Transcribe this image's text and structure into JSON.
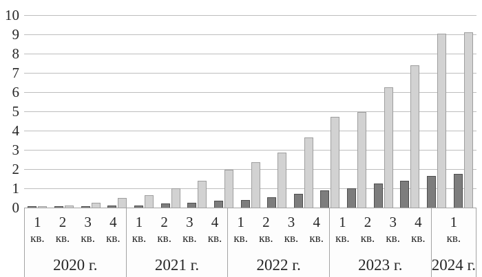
{
  "chart_data": {
    "type": "bar",
    "title": "",
    "legend": "none",
    "grid": true,
    "y_axis": {
      "min": 0,
      "max": 10,
      "tick_labels": [
        "0",
        "1",
        "2",
        "3",
        "4",
        "5",
        "6",
        "7",
        "8",
        "9",
        "10"
      ]
    },
    "x_axis": {
      "quarter_unit": "кв.",
      "years": [
        {
          "label": "2020 г.",
          "quarters": [
            "1",
            "2",
            "3",
            "4"
          ]
        },
        {
          "label": "2021 г.",
          "quarters": [
            "1",
            "2",
            "3",
            "4"
          ]
        },
        {
          "label": "2022 г.",
          "quarters": [
            "1",
            "2",
            "3",
            "4"
          ]
        },
        {
          "label": "2023 г.",
          "quarters": [
            "1",
            "2",
            "3",
            "4"
          ]
        },
        {
          "label": "2024 г.",
          "quarters": [
            "1"
          ]
        }
      ]
    },
    "categories": [
      "1 кв. 2020 г.",
      "2 кв. 2020 г.",
      "3 кв. 2020 г.",
      "4 кв. 2020 г.",
      "1 кв. 2021 г.",
      "2 кв. 2021 г.",
      "3 кв. 2021 г.",
      "4 кв. 2021 г.",
      "1 кв. 2022 г.",
      "2 кв. 2022 г.",
      "3 кв. 2022 г.",
      "4 кв. 2022 г.",
      "1 кв. 2023 г.",
      "2 кв. 2023 г.",
      "3 кв. 2023 г.",
      "4 кв. 2023 г.",
      "1 кв. 2024 г."
    ],
    "series": [
      {
        "name": "dark-gray-series",
        "fill": "#7d7d7d",
        "border": "#4d4d4d",
        "values": [
          0.03,
          0.05,
          0.06,
          0.1,
          0.12,
          0.2,
          0.25,
          0.35,
          0.4,
          0.55,
          0.7,
          0.9,
          1.0,
          1.25,
          1.4,
          1.65,
          1.75
        ]
      },
      {
        "name": "light-gray-series",
        "fill": "#d2d2d2",
        "border": "#9e9e9e",
        "values": [
          0.07,
          0.12,
          0.25,
          0.5,
          0.65,
          1.0,
          1.4,
          1.95,
          2.35,
          2.85,
          3.65,
          4.7,
          4.95,
          6.25,
          7.4,
          9.05,
          9.1
        ]
      }
    ],
    "colors": {
      "gridline": "#bdbdbd",
      "axis_border": "#a3a3a3",
      "text": "#262626",
      "background": "#ffffff"
    }
  }
}
